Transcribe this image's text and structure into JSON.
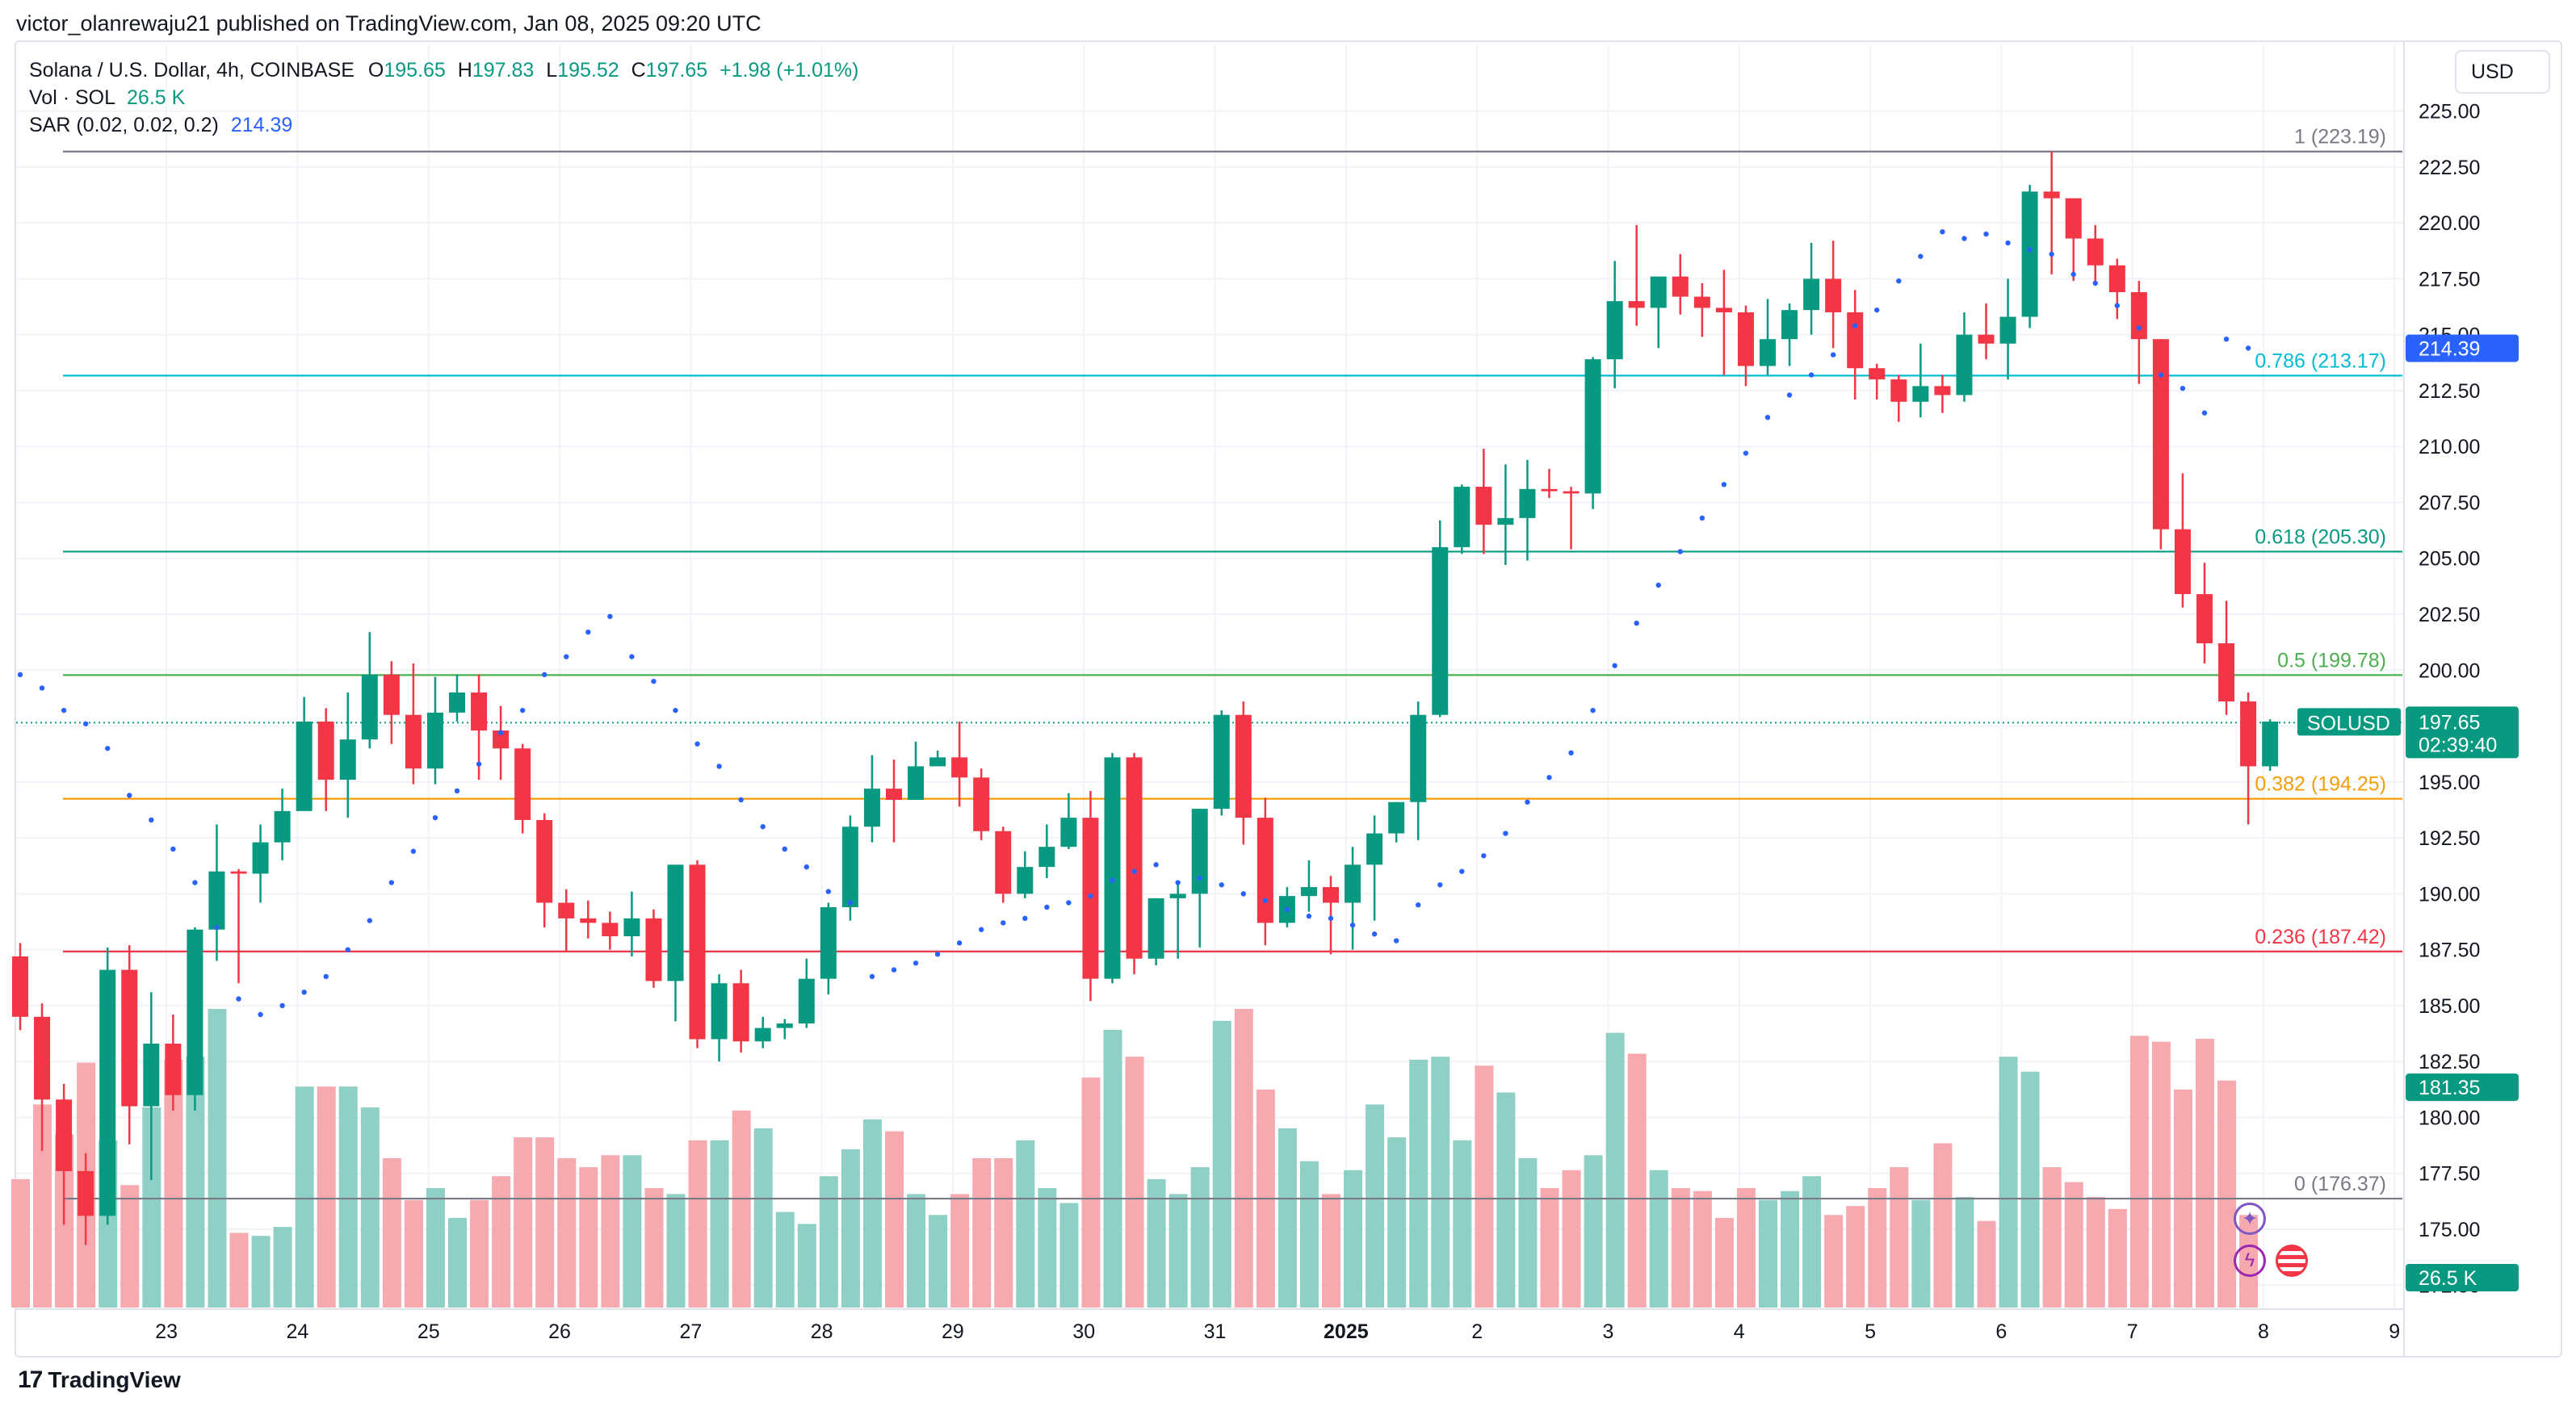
{
  "header": {
    "published": "victor_olanrewaju21 published on TradingView.com, Jan 08, 2025 09:20 UTC"
  },
  "legend": {
    "symbol": "Solana / U.S. Dollar, 4h, COINBASE",
    "o_label": "O",
    "o": "195.65",
    "h_label": "H",
    "h": "197.83",
    "l_label": "L",
    "l": "195.52",
    "c_label": "C",
    "c": "197.65",
    "change": "+1.98 (+1.01%)",
    "vol_label": "Vol · SOL",
    "vol": "26.5 K",
    "sar_label": "SAR (0.02, 0.02, 0.2)",
    "sar": "214.39"
  },
  "currency": "USD",
  "footer": {
    "brand": "TradingView"
  },
  "colors": {
    "up": "#089981",
    "down": "#f23645",
    "sar": "#2962ff",
    "grid": "#f0f3fa"
  },
  "chart_data": {
    "type": "candlestick",
    "symbol": "SOLUSD",
    "ylim": [
      171.5,
      226.5
    ],
    "y_ticks": [
      172.5,
      175.0,
      177.5,
      180.0,
      182.5,
      185.0,
      187.5,
      190.0,
      192.5,
      195.0,
      197.5,
      200.0,
      202.5,
      205.0,
      207.5,
      210.0,
      212.5,
      215.0,
      217.5,
      220.0,
      222.5,
      225.0
    ],
    "x_ticks": [
      {
        "label": "23",
        "i": 3
      },
      {
        "label": "24",
        "i": 9
      },
      {
        "label": "25",
        "i": 15
      },
      {
        "label": "26",
        "i": 21
      },
      {
        "label": "27",
        "i": 27
      },
      {
        "label": "28",
        "i": 33
      },
      {
        "label": "29",
        "i": 39
      },
      {
        "label": "30",
        "i": 45
      },
      {
        "label": "31",
        "i": 51
      },
      {
        "label": "2025",
        "i": 57,
        "bold": true
      },
      {
        "label": "2",
        "i": 63
      },
      {
        "label": "3",
        "i": 69
      },
      {
        "label": "4",
        "i": 75
      },
      {
        "label": "5",
        "i": 81
      },
      {
        "label": "6",
        "i": 87
      },
      {
        "label": "7",
        "i": 93
      },
      {
        "label": "8",
        "i": 99
      },
      {
        "label": "9",
        "i": 105
      }
    ],
    "candles": [
      [
        187.2,
        184.5,
        187.8,
        183.9
      ],
      [
        184.5,
        180.8,
        185.1,
        178.5
      ],
      [
        180.8,
        177.6,
        181.5,
        175.2
      ],
      [
        177.6,
        175.6,
        178.4,
        174.3
      ],
      [
        175.6,
        186.6,
        187.6,
        175.2
      ],
      [
        186.6,
        180.5,
        187.7,
        178.8
      ],
      [
        180.5,
        183.3,
        185.6,
        177.2
      ],
      [
        183.3,
        181.0,
        184.6,
        180.3
      ],
      [
        181.0,
        188.4,
        188.5,
        180.3
      ],
      [
        188.4,
        191.0,
        193.1,
        187.0
      ],
      [
        191.0,
        190.9,
        191.1,
        186.0
      ],
      [
        190.9,
        192.3,
        193.1,
        189.6
      ],
      [
        192.3,
        193.7,
        194.7,
        191.5
      ],
      [
        193.7,
        197.7,
        198.8,
        193.7
      ],
      [
        197.7,
        195.1,
        198.3,
        193.7
      ],
      [
        195.1,
        196.9,
        199.0,
        193.4
      ],
      [
        196.9,
        199.8,
        201.7,
        196.5
      ],
      [
        199.8,
        198.0,
        200.4,
        196.7
      ],
      [
        198.0,
        195.6,
        200.3,
        194.9
      ],
      [
        195.6,
        198.1,
        199.7,
        194.9
      ],
      [
        198.1,
        199.0,
        199.8,
        197.7
      ],
      [
        199.0,
        197.3,
        199.8,
        195.1
      ],
      [
        197.3,
        196.5,
        198.4,
        195.1
      ],
      [
        196.5,
        193.3,
        196.7,
        192.7
      ],
      [
        193.3,
        189.6,
        193.6,
        188.5
      ],
      [
        189.6,
        188.9,
        190.2,
        187.4
      ],
      [
        188.9,
        188.7,
        189.7,
        188.0
      ],
      [
        188.7,
        188.1,
        189.2,
        187.5
      ],
      [
        188.1,
        188.9,
        190.1,
        187.2
      ],
      [
        188.9,
        186.1,
        189.3,
        185.8
      ],
      [
        186.1,
        191.3,
        191.3,
        184.3
      ],
      [
        191.3,
        183.5,
        191.5,
        183.1
      ],
      [
        183.5,
        186.0,
        186.4,
        182.5
      ],
      [
        186.0,
        183.4,
        186.6,
        182.9
      ],
      [
        183.4,
        184.0,
        184.5,
        183.1
      ],
      [
        184.0,
        184.2,
        184.4,
        183.5
      ],
      [
        184.2,
        186.2,
        187.1,
        184.0
      ],
      [
        186.2,
        189.4,
        189.6,
        185.5
      ],
      [
        189.4,
        193.0,
        193.5,
        188.8
      ],
      [
        193.0,
        194.7,
        196.2,
        192.3
      ],
      [
        194.7,
        194.2,
        196.0,
        192.3
      ],
      [
        194.2,
        195.7,
        196.8,
        194.7
      ],
      [
        195.7,
        196.1,
        196.4,
        195.9
      ],
      [
        196.1,
        195.2,
        197.7,
        193.9
      ],
      [
        195.2,
        192.8,
        195.6,
        192.4
      ],
      [
        192.8,
        190.0,
        193.0,
        189.6
      ],
      [
        190.0,
        191.2,
        191.9,
        189.8
      ],
      [
        191.2,
        192.1,
        193.1,
        190.7
      ],
      [
        192.1,
        193.4,
        194.5,
        192.0
      ],
      [
        193.4,
        186.2,
        194.6,
        185.2
      ],
      [
        186.2,
        196.1,
        196.3,
        186.0
      ],
      [
        196.1,
        187.1,
        196.3,
        186.4
      ],
      [
        187.1,
        189.8,
        189.8,
        186.8
      ],
      [
        189.8,
        190.0,
        190.4,
        187.1
      ],
      [
        190.0,
        193.8,
        193.8,
        187.6
      ],
      [
        193.8,
        198.0,
        198.2,
        193.5
      ],
      [
        198.0,
        193.4,
        198.6,
        192.2
      ],
      [
        193.4,
        188.7,
        194.3,
        187.7
      ],
      [
        188.7,
        189.9,
        190.3,
        188.5
      ],
      [
        189.9,
        190.3,
        191.5,
        189.2
      ],
      [
        190.3,
        189.6,
        190.8,
        187.3
      ],
      [
        189.6,
        191.3,
        192.1,
        187.5
      ],
      [
        191.3,
        192.7,
        193.5,
        188.8
      ],
      [
        192.7,
        194.1,
        194.1,
        192.3
      ],
      [
        194.1,
        198.0,
        198.6,
        192.4
      ],
      [
        198.0,
        205.5,
        206.7,
        197.9
      ],
      [
        205.5,
        208.2,
        208.3,
        205.2
      ],
      [
        208.2,
        206.5,
        209.9,
        205.2
      ],
      [
        206.5,
        206.8,
        209.2,
        204.7
      ],
      [
        206.8,
        208.1,
        209.4,
        204.9
      ],
      [
        208.1,
        208.0,
        209.0,
        207.7
      ],
      [
        208.0,
        207.9,
        208.2,
        205.4
      ],
      [
        207.9,
        213.9,
        214.0,
        207.2
      ],
      [
        213.9,
        216.5,
        218.3,
        212.6
      ],
      [
        216.5,
        216.2,
        219.9,
        215.4
      ],
      [
        216.2,
        217.6,
        217.6,
        214.4
      ],
      [
        217.6,
        216.7,
        218.6,
        215.9
      ],
      [
        216.7,
        216.2,
        217.3,
        214.9
      ],
      [
        216.2,
        216.0,
        217.9,
        213.2
      ],
      [
        216.0,
        213.6,
        216.3,
        212.7
      ],
      [
        213.6,
        214.8,
        216.6,
        213.2
      ],
      [
        214.8,
        216.1,
        216.4,
        213.6
      ],
      [
        216.1,
        217.5,
        219.1,
        215.0
      ],
      [
        217.5,
        216.0,
        219.2,
        214.4
      ],
      [
        216.0,
        213.5,
        217.0,
        212.1
      ],
      [
        213.5,
        213.0,
        213.7,
        212.1
      ],
      [
        213.0,
        212.0,
        213.2,
        211.1
      ],
      [
        212.0,
        212.7,
        214.6,
        211.3
      ],
      [
        212.7,
        212.3,
        213.2,
        211.5
      ],
      [
        212.3,
        215.0,
        216.0,
        212.0
      ],
      [
        215.0,
        214.6,
        216.4,
        213.9
      ],
      [
        214.6,
        215.8,
        217.5,
        213.0
      ],
      [
        215.8,
        221.4,
        221.7,
        215.3
      ],
      [
        221.4,
        221.1,
        223.2,
        217.7
      ],
      [
        221.1,
        219.3,
        220.9,
        217.4
      ],
      [
        219.3,
        218.1,
        219.9,
        217.3
      ],
      [
        218.1,
        216.9,
        218.4,
        215.7
      ],
      [
        216.9,
        214.8,
        217.4,
        212.8
      ],
      [
        214.8,
        206.3,
        214.8,
        205.4
      ],
      [
        206.3,
        203.4,
        208.8,
        202.8
      ],
      [
        203.4,
        201.2,
        204.8,
        200.3
      ],
      [
        201.2,
        198.6,
        203.1,
        198.0
      ],
      [
        198.6,
        195.7,
        199.0,
        193.1
      ],
      [
        195.7,
        197.7,
        197.8,
        195.5
      ]
    ],
    "volume_ylim": [
      0,
      1.0
    ],
    "volume_scale_label": "26.5 K",
    "volumes": [
      0.43,
      0.68,
      0.58,
      0.82,
      0.56,
      0.41,
      0.67,
      0.83,
      0.84,
      1.0,
      0.25,
      0.24,
      0.27,
      0.74,
      0.74,
      0.74,
      0.67,
      0.5,
      0.36,
      0.4,
      0.3,
      0.36,
      0.44,
      0.57,
      0.57,
      0.5,
      0.47,
      0.51,
      0.51,
      0.4,
      0.38,
      0.56,
      0.56,
      0.66,
      0.6,
      0.32,
      0.28,
      0.44,
      0.53,
      0.63,
      0.59,
      0.38,
      0.31,
      0.38,
      0.5,
      0.5,
      0.56,
      0.4,
      0.35,
      0.77,
      0.93,
      0.84,
      0.43,
      0.38,
      0.47,
      0.96,
      1.0,
      0.73,
      0.6,
      0.49,
      0.38,
      0.46,
      0.68,
      0.57,
      0.83,
      0.84,
      0.56,
      0.81,
      0.72,
      0.5,
      0.4,
      0.46,
      0.51,
      0.92,
      0.85,
      0.46,
      0.4,
      0.39,
      0.3,
      0.4,
      0.36,
      0.39,
      0.44,
      0.31,
      0.34,
      0.4,
      0.47,
      0.36,
      0.55,
      0.37,
      0.29,
      0.84,
      0.79,
      0.47,
      0.42,
      0.37,
      0.33,
      0.91,
      0.89,
      0.73,
      0.9,
      0.76,
      0.31
    ],
    "sar": [
      199.8,
      199.2,
      198.2,
      197.6,
      196.5,
      194.4,
      193.3,
      192.0,
      190.5,
      188.5,
      185.3,
      184.6,
      185.0,
      185.6,
      186.3,
      187.5,
      188.8,
      190.5,
      191.9,
      193.4,
      194.6,
      195.8,
      197.2,
      198.2,
      199.8,
      200.6,
      201.7,
      202.4,
      200.6,
      199.5,
      198.2,
      196.7,
      195.7,
      194.2,
      193.0,
      192.0,
      191.2,
      190.1,
      189.6,
      186.3,
      186.6,
      186.9,
      187.3,
      187.8,
      188.4,
      188.7,
      188.9,
      189.4,
      189.6,
      189.9,
      190.6,
      191.0,
      191.3,
      190.5,
      190.7,
      190.4,
      190.0,
      189.7,
      189.3,
      189.0,
      188.9,
      188.6,
      188.2,
      187.9,
      189.5,
      190.4,
      191.0,
      191.7,
      192.7,
      194.1,
      195.2,
      196.3,
      198.2,
      200.2,
      202.1,
      203.8,
      205.3,
      206.8,
      208.3,
      209.7,
      211.3,
      212.3,
      213.2,
      214.1,
      215.4,
      216.1,
      217.4,
      218.5,
      219.6,
      219.3,
      219.5,
      219.1,
      218.8,
      218.6,
      217.7,
      217.3,
      216.3,
      215.3,
      213.2,
      212.6,
      211.5,
      214.8,
      214.4
    ],
    "fib_levels": [
      {
        "label": "1 (223.19)",
        "value": 223.19,
        "color": "#787b86"
      },
      {
        "label": "0.786 (213.17)",
        "value": 213.17,
        "color": "#00bcd4"
      },
      {
        "label": "0.618 (205.30)",
        "value": 205.3,
        "color": "#089981"
      },
      {
        "label": "0.5 (199.78)",
        "value": 199.78,
        "color": "#4caf50"
      },
      {
        "label": "0.382 (194.25)",
        "value": 194.25,
        "color": "#f59e0b"
      },
      {
        "label": "0.236 (187.42)",
        "value": 187.42,
        "color": "#f23645"
      },
      {
        "label": "0 (176.37)",
        "value": 176.37,
        "color": "#787b86"
      }
    ],
    "last_price": {
      "label": "SOLUSD",
      "value": 197.65,
      "text": "197.65",
      "countdown": "02:39:40"
    },
    "sar_tag": {
      "value": 214.39,
      "text": "214.39"
    },
    "vol_tag": {
      "value": 181.35,
      "text": "181.35"
    },
    "vol_value_tag": {
      "text": "26.5 K"
    }
  }
}
